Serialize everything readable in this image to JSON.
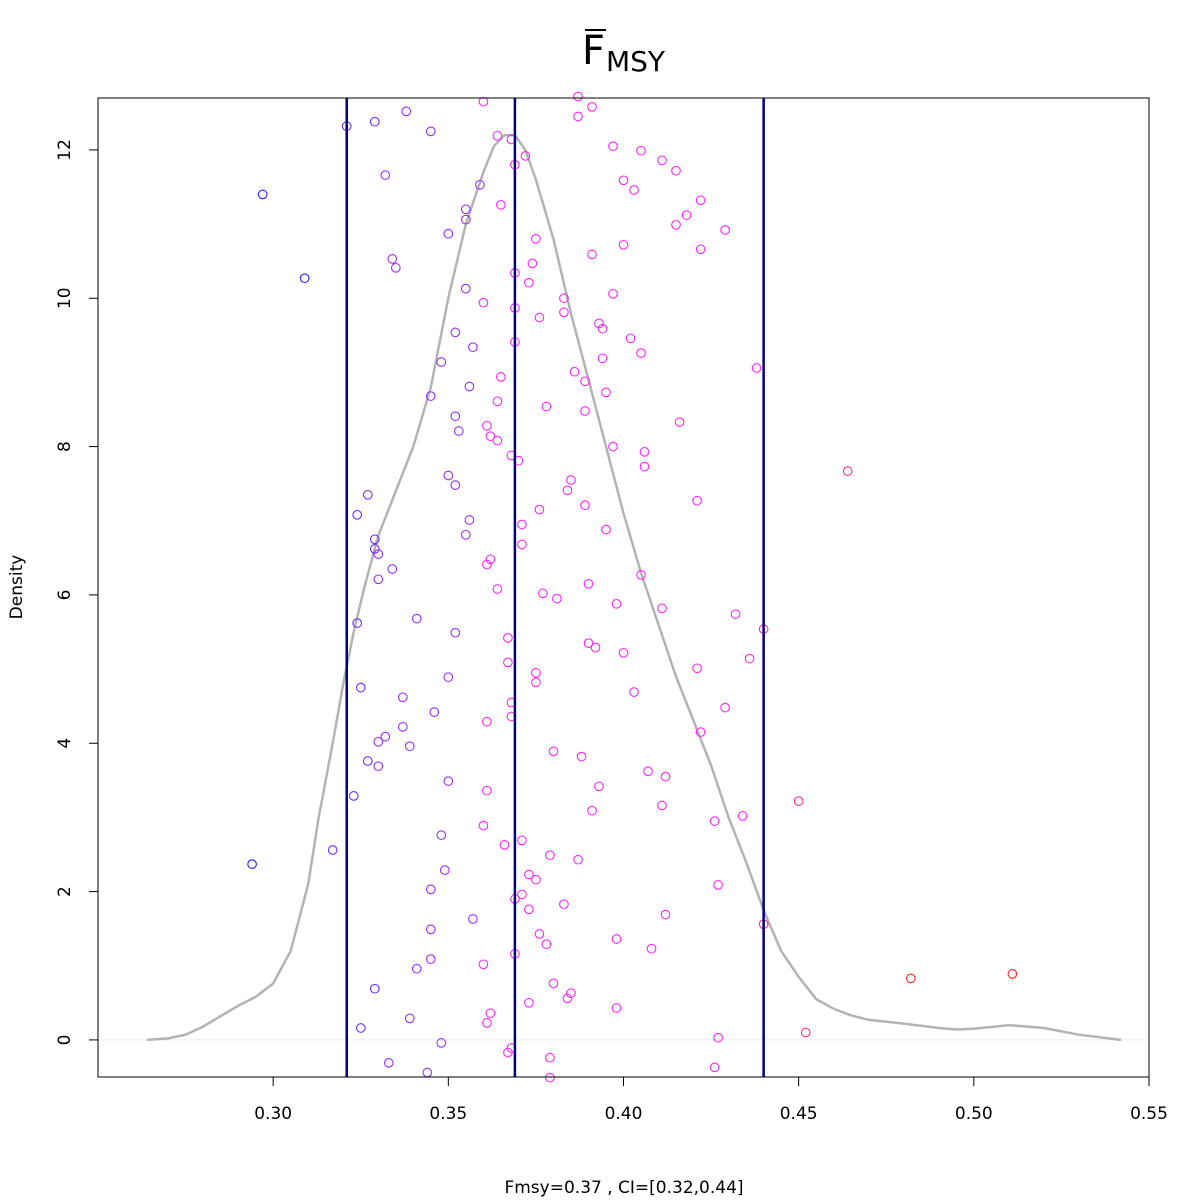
{
  "chart_data": {
    "type": "scatter",
    "title": {
      "main": "F",
      "subscript": "MSY",
      "overbar": true
    },
    "xlabel": "Fmsy=0.37 , CI=[0.32,0.44]",
    "ylabel": "Density",
    "xlim": [
      0.25,
      0.55
    ],
    "ylim": [
      -0.5,
      12.7
    ],
    "x_ticks": [
      0.3,
      0.35,
      0.4,
      0.45,
      0.5,
      0.55
    ],
    "x_tick_labels": [
      "0.30",
      "0.35",
      "0.40",
      "0.45",
      "0.50",
      "0.55"
    ],
    "y_ticks": [
      0,
      2,
      4,
      6,
      8,
      10,
      12
    ],
    "y_tick_labels": [
      "0",
      "2",
      "4",
      "6",
      "8",
      "10",
      "12"
    ],
    "grid": false,
    "colors": {
      "density": "#b3b3b3",
      "vlines": "#000080",
      "low": "#2222ff",
      "mid": "#ff22ff",
      "high": "#ff2222",
      "zero_line": "#eeeeee"
    },
    "vlines": [
      0.321,
      0.369,
      0.44
    ],
    "density_curve": {
      "x": [
        0.264,
        0.27,
        0.275,
        0.28,
        0.285,
        0.29,
        0.295,
        0.3,
        0.305,
        0.31,
        0.313,
        0.317,
        0.32,
        0.323,
        0.326,
        0.33,
        0.335,
        0.34,
        0.345,
        0.35,
        0.355,
        0.36,
        0.363,
        0.366,
        0.369,
        0.372,
        0.375,
        0.38,
        0.385,
        0.39,
        0.395,
        0.4,
        0.405,
        0.41,
        0.415,
        0.42,
        0.425,
        0.43,
        0.435,
        0.44,
        0.445,
        0.45,
        0.455,
        0.46,
        0.465,
        0.47,
        0.48,
        0.49,
        0.495,
        0.5,
        0.51,
        0.52,
        0.53,
        0.542
      ],
      "y": [
        0.0,
        0.02,
        0.07,
        0.18,
        0.32,
        0.46,
        0.58,
        0.76,
        1.2,
        2.1,
        3.0,
        4.0,
        4.8,
        5.5,
        6.1,
        6.8,
        7.4,
        8.0,
        8.8,
        10.0,
        11.0,
        11.7,
        12.05,
        12.2,
        12.2,
        12.0,
        11.6,
        10.8,
        9.8,
        8.9,
        8.0,
        7.1,
        6.3,
        5.6,
        4.9,
        4.3,
        3.7,
        3.0,
        2.4,
        1.75,
        1.2,
        0.85,
        0.55,
        0.42,
        0.33,
        0.27,
        0.22,
        0.16,
        0.14,
        0.15,
        0.2,
        0.16,
        0.07,
        0.0
      ]
    },
    "points": [
      {
        "x": 0.297,
        "y": 11.4
      },
      {
        "x": 0.309,
        "y": 10.27
      },
      {
        "x": 0.294,
        "y": 2.37
      },
      {
        "x": 0.321,
        "y": 12.32
      },
      {
        "x": 0.329,
        "y": 12.38
      },
      {
        "x": 0.338,
        "y": 12.52
      },
      {
        "x": 0.345,
        "y": 12.25
      },
      {
        "x": 0.36,
        "y": 12.65
      },
      {
        "x": 0.387,
        "y": 12.72
      },
      {
        "x": 0.391,
        "y": 12.58
      },
      {
        "x": 0.387,
        "y": 12.45
      },
      {
        "x": 0.364,
        "y": 12.19
      },
      {
        "x": 0.368,
        "y": 12.14
      },
      {
        "x": 0.372,
        "y": 11.92
      },
      {
        "x": 0.369,
        "y": 11.8
      },
      {
        "x": 0.332,
        "y": 11.66
      },
      {
        "x": 0.359,
        "y": 11.53
      },
      {
        "x": 0.365,
        "y": 11.26
      },
      {
        "x": 0.355,
        "y": 11.2
      },
      {
        "x": 0.355,
        "y": 11.06
      },
      {
        "x": 0.35,
        "y": 10.87
      },
      {
        "x": 0.375,
        "y": 10.8
      },
      {
        "x": 0.334,
        "y": 10.53
      },
      {
        "x": 0.335,
        "y": 10.41
      },
      {
        "x": 0.374,
        "y": 10.47
      },
      {
        "x": 0.369,
        "y": 10.34
      },
      {
        "x": 0.373,
        "y": 10.21
      },
      {
        "x": 0.355,
        "y": 10.13
      },
      {
        "x": 0.383,
        "y": 10.0
      },
      {
        "x": 0.36,
        "y": 9.94
      },
      {
        "x": 0.369,
        "y": 9.87
      },
      {
        "x": 0.383,
        "y": 9.81
      },
      {
        "x": 0.376,
        "y": 9.74
      },
      {
        "x": 0.352,
        "y": 9.54
      },
      {
        "x": 0.369,
        "y": 9.41
      },
      {
        "x": 0.357,
        "y": 9.34
      },
      {
        "x": 0.348,
        "y": 9.14
      },
      {
        "x": 0.386,
        "y": 9.01
      },
      {
        "x": 0.365,
        "y": 8.94
      },
      {
        "x": 0.389,
        "y": 8.88
      },
      {
        "x": 0.356,
        "y": 8.81
      },
      {
        "x": 0.345,
        "y": 8.68
      },
      {
        "x": 0.364,
        "y": 8.61
      },
      {
        "x": 0.378,
        "y": 8.54
      },
      {
        "x": 0.389,
        "y": 8.48
      },
      {
        "x": 0.352,
        "y": 8.41
      },
      {
        "x": 0.361,
        "y": 8.28
      },
      {
        "x": 0.353,
        "y": 8.21
      },
      {
        "x": 0.362,
        "y": 8.14
      },
      {
        "x": 0.364,
        "y": 8.08
      },
      {
        "x": 0.368,
        "y": 7.88
      },
      {
        "x": 0.37,
        "y": 7.81
      },
      {
        "x": 0.35,
        "y": 7.61
      },
      {
        "x": 0.385,
        "y": 7.55
      },
      {
        "x": 0.352,
        "y": 7.48
      },
      {
        "x": 0.384,
        "y": 7.41
      },
      {
        "x": 0.327,
        "y": 7.35
      },
      {
        "x": 0.389,
        "y": 7.21
      },
      {
        "x": 0.376,
        "y": 7.15
      },
      {
        "x": 0.324,
        "y": 7.08
      },
      {
        "x": 0.356,
        "y": 7.01
      },
      {
        "x": 0.371,
        "y": 6.95
      },
      {
        "x": 0.395,
        "y": 6.88
      },
      {
        "x": 0.355,
        "y": 6.81
      },
      {
        "x": 0.329,
        "y": 6.75
      },
      {
        "x": 0.371,
        "y": 6.68
      },
      {
        "x": 0.329,
        "y": 6.62
      },
      {
        "x": 0.33,
        "y": 6.55
      },
      {
        "x": 0.362,
        "y": 6.48
      },
      {
        "x": 0.361,
        "y": 6.41
      },
      {
        "x": 0.334,
        "y": 6.35
      },
      {
        "x": 0.33,
        "y": 6.21
      },
      {
        "x": 0.39,
        "y": 6.15
      },
      {
        "x": 0.364,
        "y": 6.08
      },
      {
        "x": 0.377,
        "y": 6.02
      },
      {
        "x": 0.381,
        "y": 5.95
      },
      {
        "x": 0.398,
        "y": 5.88
      },
      {
        "x": 0.411,
        "y": 5.82
      },
      {
        "x": 0.341,
        "y": 5.68
      },
      {
        "x": 0.324,
        "y": 5.62
      },
      {
        "x": 0.352,
        "y": 5.49
      },
      {
        "x": 0.367,
        "y": 5.42
      },
      {
        "x": 0.39,
        "y": 5.35
      },
      {
        "x": 0.392,
        "y": 5.29
      },
      {
        "x": 0.4,
        "y": 5.22
      },
      {
        "x": 0.367,
        "y": 5.09
      },
      {
        "x": 0.375,
        "y": 4.95
      },
      {
        "x": 0.35,
        "y": 4.89
      },
      {
        "x": 0.375,
        "y": 4.82
      },
      {
        "x": 0.325,
        "y": 4.75
      },
      {
        "x": 0.403,
        "y": 4.69
      },
      {
        "x": 0.337,
        "y": 4.62
      },
      {
        "x": 0.368,
        "y": 4.55
      },
      {
        "x": 0.346,
        "y": 4.42
      },
      {
        "x": 0.368,
        "y": 4.36
      },
      {
        "x": 0.361,
        "y": 4.29
      },
      {
        "x": 0.337,
        "y": 4.22
      },
      {
        "x": 0.332,
        "y": 4.09
      },
      {
        "x": 0.33,
        "y": 4.02
      },
      {
        "x": 0.339,
        "y": 3.96
      },
      {
        "x": 0.38,
        "y": 3.89
      },
      {
        "x": 0.388,
        "y": 3.82
      },
      {
        "x": 0.327,
        "y": 3.76
      },
      {
        "x": 0.33,
        "y": 3.69
      },
      {
        "x": 0.407,
        "y": 3.62
      },
      {
        "x": 0.35,
        "y": 3.49
      },
      {
        "x": 0.393,
        "y": 3.42
      },
      {
        "x": 0.361,
        "y": 3.36
      },
      {
        "x": 0.323,
        "y": 3.29
      },
      {
        "x": 0.411,
        "y": 3.16
      },
      {
        "x": 0.391,
        "y": 3.09
      },
      {
        "x": 0.36,
        "y": 2.89
      },
      {
        "x": 0.348,
        "y": 2.76
      },
      {
        "x": 0.371,
        "y": 2.69
      },
      {
        "x": 0.366,
        "y": 2.63
      },
      {
        "x": 0.317,
        "y": 2.56
      },
      {
        "x": 0.379,
        "y": 2.49
      },
      {
        "x": 0.387,
        "y": 2.43
      },
      {
        "x": 0.349,
        "y": 2.29
      },
      {
        "x": 0.373,
        "y": 2.23
      },
      {
        "x": 0.375,
        "y": 2.16
      },
      {
        "x": 0.345,
        "y": 2.03
      },
      {
        "x": 0.371,
        "y": 1.96
      },
      {
        "x": 0.369,
        "y": 1.9
      },
      {
        "x": 0.373,
        "y": 1.76
      },
      {
        "x": 0.357,
        "y": 1.63
      },
      {
        "x": 0.345,
        "y": 1.49
      },
      {
        "x": 0.376,
        "y": 1.43
      },
      {
        "x": 0.378,
        "y": 1.29
      },
      {
        "x": 0.369,
        "y": 1.16
      },
      {
        "x": 0.345,
        "y": 1.09
      },
      {
        "x": 0.36,
        "y": 1.02
      },
      {
        "x": 0.341,
        "y": 0.96
      },
      {
        "x": 0.38,
        "y": 0.76
      },
      {
        "x": 0.329,
        "y": 0.69
      },
      {
        "x": 0.385,
        "y": 0.63
      },
      {
        "x": 0.384,
        "y": 0.56
      },
      {
        "x": 0.373,
        "y": 0.5
      },
      {
        "x": 0.362,
        "y": 0.36
      },
      {
        "x": 0.339,
        "y": 0.29
      },
      {
        "x": 0.361,
        "y": 0.23
      },
      {
        "x": 0.325,
        "y": 0.16
      },
      {
        "x": 0.348,
        "y": -0.04
      },
      {
        "x": 0.368,
        "y": -0.11
      },
      {
        "x": 0.367,
        "y": -0.17
      },
      {
        "x": 0.379,
        "y": -0.24
      },
      {
        "x": 0.333,
        "y": -0.31
      },
      {
        "x": 0.344,
        "y": -0.44
      },
      {
        "x": 0.379,
        "y": -0.51
      },
      {
        "x": 0.397,
        "y": 12.05
      },
      {
        "x": 0.405,
        "y": 11.99
      },
      {
        "x": 0.411,
        "y": 11.86
      },
      {
        "x": 0.415,
        "y": 11.72
      },
      {
        "x": 0.4,
        "y": 11.59
      },
      {
        "x": 0.403,
        "y": 11.46
      },
      {
        "x": 0.422,
        "y": 11.32
      },
      {
        "x": 0.418,
        "y": 11.12
      },
      {
        "x": 0.415,
        "y": 10.99
      },
      {
        "x": 0.429,
        "y": 10.92
      },
      {
        "x": 0.4,
        "y": 10.72
      },
      {
        "x": 0.422,
        "y": 10.66
      },
      {
        "x": 0.391,
        "y": 10.59
      },
      {
        "x": 0.397,
        "y": 10.06
      },
      {
        "x": 0.393,
        "y": 9.66
      },
      {
        "x": 0.394,
        "y": 9.59
      },
      {
        "x": 0.402,
        "y": 9.46
      },
      {
        "x": 0.405,
        "y": 9.26
      },
      {
        "x": 0.394,
        "y": 9.19
      },
      {
        "x": 0.438,
        "y": 9.06
      },
      {
        "x": 0.395,
        "y": 8.73
      },
      {
        "x": 0.416,
        "y": 8.33
      },
      {
        "x": 0.397,
        "y": 8.0
      },
      {
        "x": 0.406,
        "y": 7.93
      },
      {
        "x": 0.406,
        "y": 7.73
      },
      {
        "x": 0.464,
        "y": 7.67
      },
      {
        "x": 0.421,
        "y": 7.27
      },
      {
        "x": 0.405,
        "y": 6.27
      },
      {
        "x": 0.432,
        "y": 5.74
      },
      {
        "x": 0.44,
        "y": 5.54
      },
      {
        "x": 0.436,
        "y": 5.14
      },
      {
        "x": 0.421,
        "y": 5.01
      },
      {
        "x": 0.429,
        "y": 4.48
      },
      {
        "x": 0.422,
        "y": 4.15
      },
      {
        "x": 0.412,
        "y": 3.55
      },
      {
        "x": 0.45,
        "y": 3.22
      },
      {
        "x": 0.434,
        "y": 3.02
      },
      {
        "x": 0.426,
        "y": 2.95
      },
      {
        "x": 0.427,
        "y": 2.09
      },
      {
        "x": 0.383,
        "y": 1.83
      },
      {
        "x": 0.412,
        "y": 1.69
      },
      {
        "x": 0.44,
        "y": 1.56
      },
      {
        "x": 0.398,
        "y": 1.36
      },
      {
        "x": 0.408,
        "y": 1.23
      },
      {
        "x": 0.482,
        "y": 0.83
      },
      {
        "x": 0.511,
        "y": 0.89
      },
      {
        "x": 0.398,
        "y": 0.43
      },
      {
        "x": 0.452,
        "y": 0.1
      },
      {
        "x": 0.427,
        "y": 0.03
      },
      {
        "x": 0.426,
        "y": -0.37
      }
    ]
  }
}
